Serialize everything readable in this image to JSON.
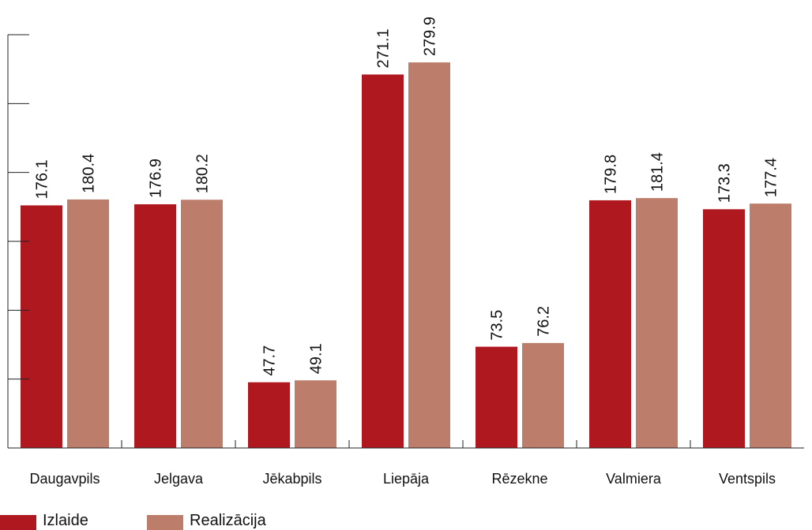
{
  "chart_data": {
    "type": "bar",
    "categories": [
      "Daugavpils",
      "Jelgava",
      "Jēkabpils",
      "Liepāja",
      "Rēzekne",
      "Valmiera",
      "Ventspils"
    ],
    "series": [
      {
        "name": "Izlaide",
        "color": "#b01820",
        "values": [
          176.1,
          176.9,
          47.7,
          271.1,
          73.5,
          179.8,
          173.3
        ],
        "labels": [
          "176.1",
          "176.9",
          "47.7",
          "271.1",
          "73.5",
          "179.8",
          "173.3"
        ]
      },
      {
        "name": "Realizācija",
        "color": "#bd7d6b",
        "values": [
          180.4,
          180.2,
          49.1,
          279.9,
          76.2,
          181.4,
          177.4
        ],
        "labels": [
          "180.4",
          "180.2",
          "49.1",
          "279.9",
          "76.2",
          "181.4",
          "177.4"
        ]
      }
    ],
    "ylim": [
      0,
      300
    ],
    "ytick_step": 50,
    "title": "",
    "xlabel": "",
    "ylabel": "",
    "grid": false,
    "legend_position": "bottom-left"
  }
}
